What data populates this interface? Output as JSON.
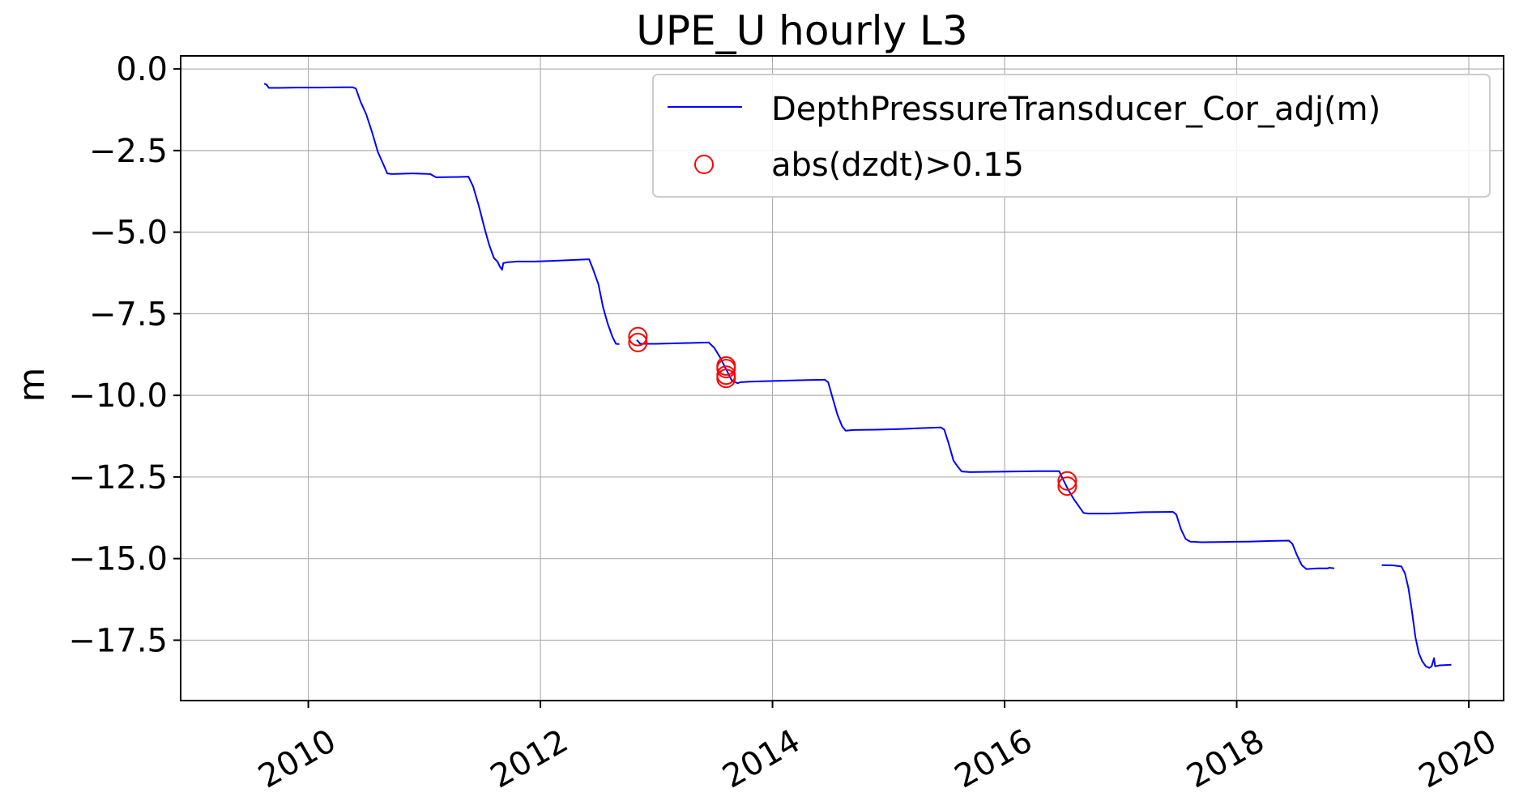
{
  "chart_data": {
    "type": "line",
    "title": "UPE_U hourly L3",
    "xlabel": "",
    "ylabel": "m",
    "xlim": [
      2008.9,
      2020.3
    ],
    "ylim": [
      -19.35,
      0.4
    ],
    "x_ticks": [
      2010,
      2012,
      2014,
      2016,
      2018,
      2020
    ],
    "x_tick_labels": [
      "2010",
      "2012",
      "2014",
      "2016",
      "2018",
      "2020"
    ],
    "y_ticks": [
      0.0,
      -2.5,
      -5.0,
      -7.5,
      -10.0,
      -12.5,
      -15.0,
      -17.5
    ],
    "y_tick_labels": [
      "0.0",
      "−2.5",
      "−5.0",
      "−7.5",
      "−10.0",
      "−12.5",
      "−15.0",
      "−17.5"
    ],
    "grid": true,
    "legend_position": "top-right",
    "series": [
      {
        "name": "DepthPressureTransducer_Cor_adj(m)",
        "kind": "line",
        "color": "#0000ff",
        "segments": [
          [
            [
              2009.62,
              -0.45
            ],
            [
              2009.64,
              -0.48
            ],
            [
              2009.66,
              -0.58
            ],
            [
              2009.75,
              -0.58
            ],
            [
              2009.9,
              -0.57
            ],
            [
              2010.1,
              -0.57
            ],
            [
              2010.3,
              -0.56
            ],
            [
              2010.38,
              -0.56
            ],
            [
              2010.41,
              -0.6
            ],
            [
              2010.45,
              -1.0
            ],
            [
              2010.5,
              -1.4
            ],
            [
              2010.55,
              -1.95
            ],
            [
              2010.6,
              -2.55
            ],
            [
              2010.65,
              -2.95
            ],
            [
              2010.68,
              -3.2
            ],
            [
              2010.72,
              -3.22
            ],
            [
              2010.9,
              -3.2
            ],
            [
              2011.05,
              -3.22
            ],
            [
              2011.1,
              -3.32
            ],
            [
              2011.3,
              -3.31
            ],
            [
              2011.38,
              -3.3
            ],
            [
              2011.42,
              -3.6
            ],
            [
              2011.47,
              -4.2
            ],
            [
              2011.52,
              -4.9
            ],
            [
              2011.56,
              -5.4
            ],
            [
              2011.6,
              -5.8
            ],
            [
              2011.63,
              -5.9
            ],
            [
              2011.65,
              -6.05
            ],
            [
              2011.67,
              -6.15
            ],
            [
              2011.68,
              -5.95
            ],
            [
              2011.72,
              -5.92
            ],
            [
              2011.8,
              -5.9
            ],
            [
              2011.95,
              -5.9
            ],
            [
              2012.1,
              -5.88
            ],
            [
              2012.3,
              -5.85
            ],
            [
              2012.42,
              -5.83
            ],
            [
              2012.45,
              -6.1
            ],
            [
              2012.5,
              -6.6
            ],
            [
              2012.54,
              -7.3
            ],
            [
              2012.58,
              -7.8
            ],
            [
              2012.62,
              -8.2
            ],
            [
              2012.65,
              -8.42
            ],
            [
              2012.68,
              -8.43
            ]
          ],
          [
            [
              2012.83,
              -8.3
            ],
            [
              2012.86,
              -8.42
            ],
            [
              2013.0,
              -8.42
            ],
            [
              2013.2,
              -8.4
            ],
            [
              2013.45,
              -8.38
            ],
            [
              2013.5,
              -8.55
            ],
            [
              2013.55,
              -8.85
            ],
            [
              2013.6,
              -9.2
            ],
            [
              2013.65,
              -9.55
            ],
            [
              2013.7,
              -9.63
            ],
            [
              2013.72,
              -9.6
            ],
            [
              2013.8,
              -9.58
            ],
            [
              2014.0,
              -9.56
            ],
            [
              2014.3,
              -9.53
            ],
            [
              2014.45,
              -9.52
            ],
            [
              2014.48,
              -9.6
            ],
            [
              2014.52,
              -10.1
            ],
            [
              2014.56,
              -10.6
            ],
            [
              2014.6,
              -10.95
            ],
            [
              2014.63,
              -11.08
            ],
            [
              2014.7,
              -11.06
            ],
            [
              2014.9,
              -11.05
            ],
            [
              2015.1,
              -11.03
            ],
            [
              2015.3,
              -11.0
            ],
            [
              2015.45,
              -10.98
            ],
            [
              2015.48,
              -11.05
            ],
            [
              2015.52,
              -11.5
            ],
            [
              2015.56,
              -12.0
            ],
            [
              2015.6,
              -12.2
            ],
            [
              2015.63,
              -12.33
            ],
            [
              2015.7,
              -12.35
            ],
            [
              2015.9,
              -12.34
            ],
            [
              2016.1,
              -12.33
            ],
            [
              2016.3,
              -12.32
            ],
            [
              2016.47,
              -12.32
            ],
            [
              2016.5,
              -12.55
            ],
            [
              2016.55,
              -12.9
            ],
            [
              2016.6,
              -13.2
            ],
            [
              2016.65,
              -13.45
            ],
            [
              2016.68,
              -13.6
            ],
            [
              2016.72,
              -13.62
            ],
            [
              2016.9,
              -13.62
            ],
            [
              2017.2,
              -13.58
            ],
            [
              2017.45,
              -13.57
            ],
            [
              2017.48,
              -13.65
            ],
            [
              2017.52,
              -14.1
            ],
            [
              2017.56,
              -14.4
            ],
            [
              2017.6,
              -14.48
            ],
            [
              2017.7,
              -14.5
            ],
            [
              2017.9,
              -14.49
            ],
            [
              2018.1,
              -14.48
            ],
            [
              2018.3,
              -14.46
            ],
            [
              2018.45,
              -14.45
            ],
            [
              2018.48,
              -14.55
            ],
            [
              2018.52,
              -14.9
            ],
            [
              2018.56,
              -15.2
            ],
            [
              2018.6,
              -15.32
            ],
            [
              2018.7,
              -15.3
            ],
            [
              2018.78,
              -15.3
            ],
            [
              2018.8,
              -15.28
            ],
            [
              2018.84,
              -15.3
            ]
          ],
          [
            [
              2019.25,
              -15.2
            ],
            [
              2019.35,
              -15.21
            ],
            [
              2019.42,
              -15.24
            ],
            [
              2019.45,
              -15.45
            ],
            [
              2019.48,
              -15.9
            ],
            [
              2019.51,
              -16.6
            ],
            [
              2019.54,
              -17.4
            ],
            [
              2019.57,
              -17.9
            ],
            [
              2019.6,
              -18.15
            ],
            [
              2019.63,
              -18.3
            ],
            [
              2019.66,
              -18.35
            ],
            [
              2019.68,
              -18.3
            ],
            [
              2019.7,
              -18.05
            ],
            [
              2019.71,
              -18.3
            ],
            [
              2019.75,
              -18.27
            ],
            [
              2019.85,
              -18.25
            ]
          ]
        ]
      },
      {
        "name": "abs(dzdt)>0.15",
        "kind": "scatter",
        "marker": "open-circle",
        "color": "#ff0000",
        "points": [
          [
            2012.84,
            -8.2
          ],
          [
            2012.84,
            -8.38
          ],
          [
            2013.6,
            -9.1
          ],
          [
            2013.6,
            -9.18
          ],
          [
            2013.6,
            -9.38
          ],
          [
            2013.6,
            -9.48
          ],
          [
            2016.54,
            -12.62
          ],
          [
            2016.54,
            -12.78
          ]
        ]
      }
    ]
  }
}
